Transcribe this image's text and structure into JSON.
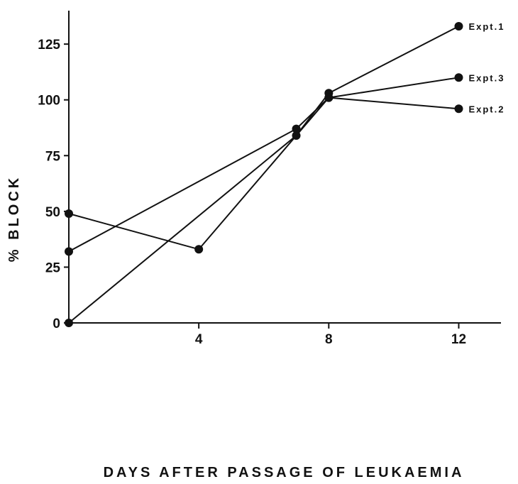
{
  "chart_data": {
    "type": "line",
    "title": "",
    "xlabel": "DAYS AFTER PASSAGE OF LEUKAEMIA",
    "ylabel": "% BLOCK",
    "xlim": [
      0,
      13.3
    ],
    "ylim": [
      0,
      140
    ],
    "x_ticks": [
      4,
      8,
      12
    ],
    "y_ticks": [
      0,
      25,
      50,
      75,
      100,
      125
    ],
    "grid": false,
    "legend": "inline labels at line ends",
    "colors": {
      "line": "#111111",
      "marker": "#111111",
      "background": "#ffffff"
    },
    "series": [
      {
        "name": "Expt.1",
        "x": [
          0,
          7,
          8,
          12
        ],
        "y": [
          0,
          84,
          103,
          133
        ]
      },
      {
        "name": "Expt.2",
        "x": [
          0,
          4,
          8,
          12
        ],
        "y": [
          49,
          33,
          101,
          96
        ]
      },
      {
        "name": "Expt.3",
        "x": [
          0,
          7,
          8,
          12
        ],
        "y": [
          32,
          87,
          101,
          110
        ]
      }
    ]
  }
}
